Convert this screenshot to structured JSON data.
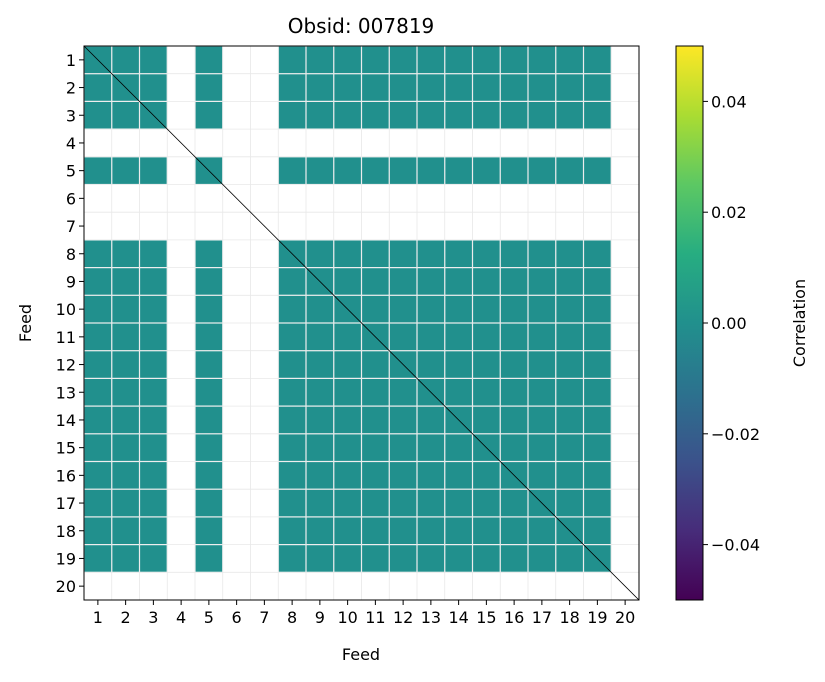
{
  "chart_data": {
    "type": "heatmap",
    "title": "Obsid: 007819",
    "xlabel": "Feed",
    "ylabel": "Feed",
    "x_ticks": [
      "1",
      "2",
      "3",
      "4",
      "5",
      "6",
      "7",
      "8",
      "9",
      "10",
      "11",
      "12",
      "13",
      "14",
      "15",
      "16",
      "17",
      "18",
      "19",
      "20"
    ],
    "y_ticks": [
      "1",
      "2",
      "3",
      "4",
      "5",
      "6",
      "7",
      "8",
      "9",
      "10",
      "11",
      "12",
      "13",
      "14",
      "15",
      "16",
      "17",
      "18",
      "19",
      "20"
    ],
    "grid": true,
    "colorbar": {
      "label": "Correlation",
      "min": -0.05,
      "max": 0.05,
      "ticks": [
        -0.04,
        -0.02,
        0.0,
        0.02,
        0.04
      ],
      "tick_labels": [
        "−0.04",
        "−0.02",
        "0.00",
        "0.02",
        "0.04"
      ],
      "colormap": "viridis"
    },
    "cell_value_shown": 0.0,
    "cell_color": "#21908d",
    "active_feeds": [
      1,
      2,
      3,
      5,
      8,
      9,
      10,
      11,
      12,
      13,
      14,
      15,
      16,
      17,
      18,
      19
    ],
    "empty_feeds": [
      4,
      6,
      7,
      20
    ],
    "diagonal_color": "#000000"
  }
}
